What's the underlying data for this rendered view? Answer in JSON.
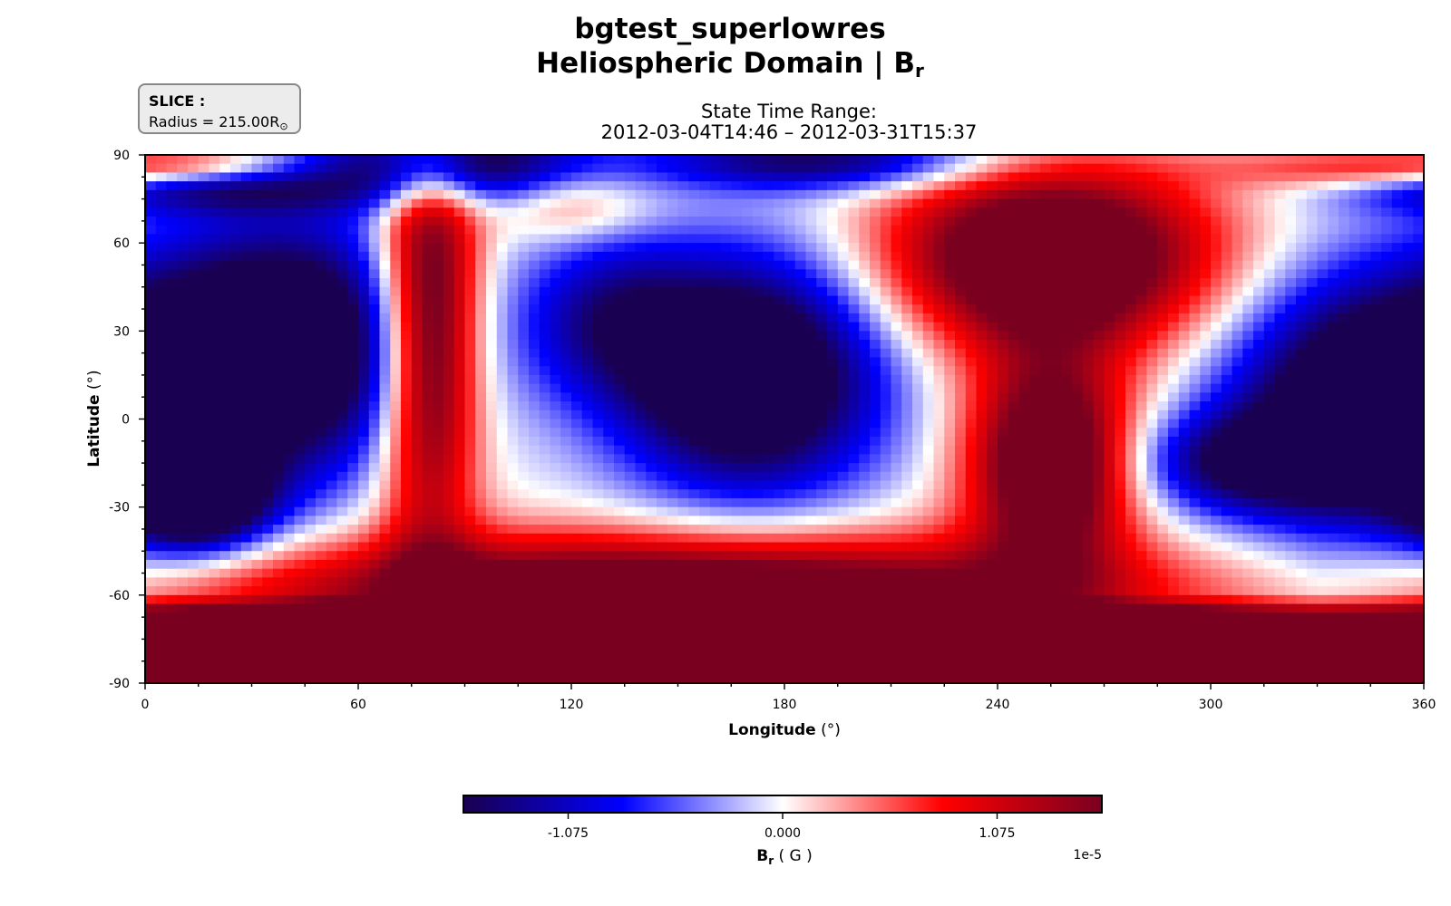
{
  "header": {
    "title_line1": "bgtest_superlowres",
    "title_line2_prefix": "Heliospheric Domain | B",
    "title_line2_sub": "r",
    "time_range_label": "State Time Range:",
    "time_range_value": "2012-03-04T14:46 – 2012-03-31T15:37"
  },
  "slice": {
    "label": "SLICE :",
    "value_prefix": "Radius = 215.00R",
    "value_unit": "⊙"
  },
  "chart_data": {
    "type": "heatmap",
    "variable": "Br",
    "xlabel": "Longitude",
    "xlabel_unit": "(°)",
    "ylabel": "Latitude",
    "ylabel_unit": "(°)",
    "xlim": [
      0,
      360
    ],
    "ylim": [
      -90,
      90
    ],
    "xticks": [
      0,
      60,
      120,
      180,
      240,
      300,
      360
    ],
    "yticks": [
      -90,
      -60,
      -30,
      0,
      30,
      60,
      90
    ],
    "grid": false,
    "colormap": "seismic",
    "colorbar": {
      "label_prefix": "B",
      "label_sub": "r",
      "label_unit": "( G )",
      "ticks": [
        "-1.075",
        "0.000",
        "1.075"
      ],
      "tick_values": [
        -1.075,
        0.0,
        1.075
      ],
      "range": [
        -1.6,
        1.6
      ],
      "multiplier": "1e-5",
      "colors": [
        "#1a0050",
        "#0000ff",
        "#ffffff",
        "#ff0000",
        "#7a0020"
      ]
    },
    "field_sources": [
      {
        "lon": 40,
        "lat": 25,
        "value": -1.6,
        "slon": 28,
        "slat": 30
      },
      {
        "lon": 15,
        "lat": -28,
        "value": -1.4,
        "slon": 14,
        "slat": 12
      },
      {
        "lon": 170,
        "lat": 15,
        "value": -1.7,
        "slon": 26,
        "slat": 28
      },
      {
        "lon": 130,
        "lat": 35,
        "value": -0.7,
        "slon": 18,
        "slat": 20
      },
      {
        "lon": 345,
        "lat": 5,
        "value": -1.6,
        "slon": 28,
        "slat": 30
      },
      {
        "lon": 310,
        "lat": -15,
        "value": -0.9,
        "slon": 22,
        "slat": 12
      },
      {
        "lon": 85,
        "lat": 88,
        "value": -1.3,
        "slon": 25,
        "slat": 10
      },
      {
        "lon": 190,
        "lat": 88,
        "value": -1.0,
        "slon": 35,
        "slat": 7
      },
      {
        "lon": 20,
        "lat": 78,
        "value": -0.7,
        "slon": 30,
        "slat": 6
      },
      {
        "lon": 80,
        "lat": 30,
        "value": 1.6,
        "slon": 10,
        "slat": 50
      },
      {
        "lon": 255,
        "lat": 55,
        "value": 1.7,
        "slon": 32,
        "slat": 22
      },
      {
        "lon": 255,
        "lat": -15,
        "value": 1.6,
        "slon": 16,
        "slat": 25
      },
      {
        "lon": 150,
        "lat": -60,
        "value": 1.6,
        "slon": 90,
        "slat": 14
      },
      {
        "lon": 120,
        "lat": 72,
        "value": 0.4,
        "slon": 15,
        "slat": 8
      },
      {
        "lon": 340,
        "lat": 85,
        "value": 0.5,
        "slon": 25,
        "slat": 5
      },
      {
        "lon": 15,
        "lat": 86,
        "value": 0.5,
        "slon": 20,
        "slat": 4
      }
    ]
  }
}
